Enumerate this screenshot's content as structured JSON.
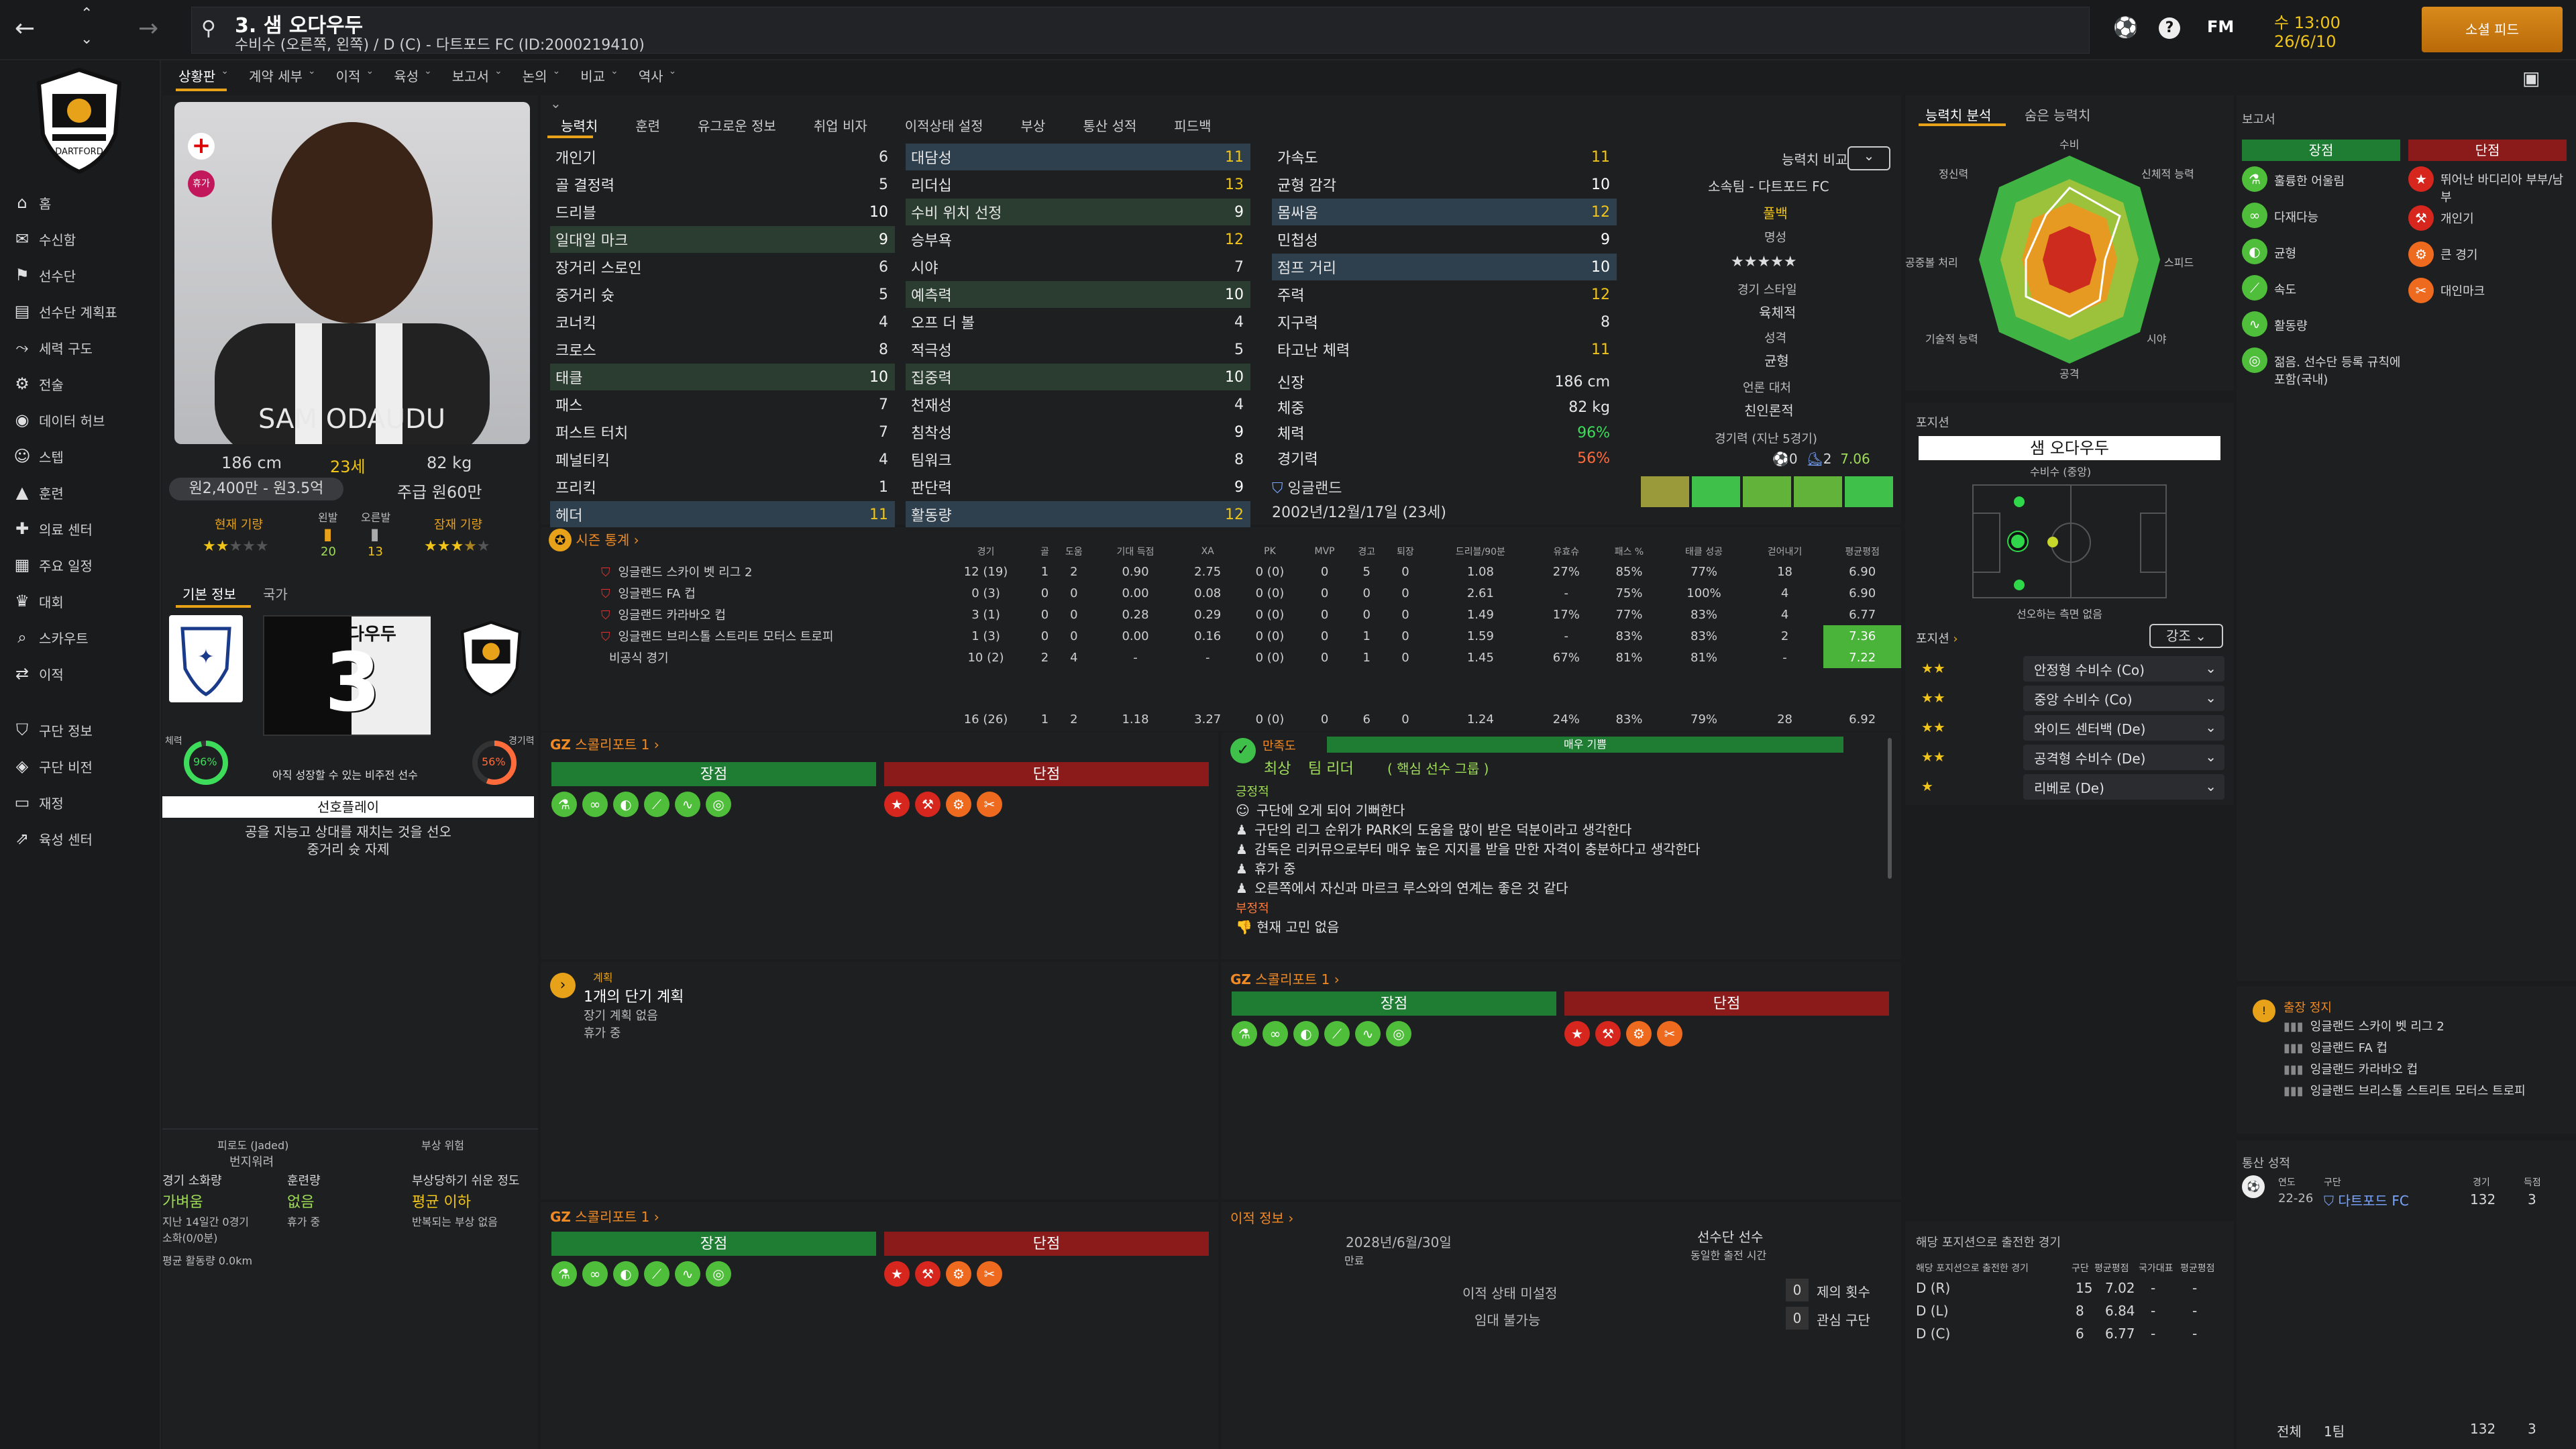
{
  "header": {
    "title": "3. 샘 오다우두",
    "subtitle": "수비수 (오른쪽, 왼쪽) / D (C) - 다트포드 FC (ID:2000219410)",
    "brand": "FM",
    "date_time": "수 13:00",
    "date": "26/6/10",
    "continue_label": "소셜 피드"
  },
  "sidebar": {
    "items": [
      {
        "label": "홈",
        "icon": "home-icon"
      },
      {
        "label": "수신함",
        "icon": "inbox-icon"
      },
      {
        "label": "선수단",
        "icon": "squad-icon"
      },
      {
        "label": "선수단 계획표",
        "icon": "plan-icon"
      },
      {
        "label": "세력 구도",
        "icon": "dynamics-icon"
      },
      {
        "label": "전술",
        "icon": "tactics-icon"
      },
      {
        "label": "데이터 허브",
        "icon": "data-icon"
      },
      {
        "label": "스텝",
        "icon": "staff-icon"
      },
      {
        "label": "훈련",
        "icon": "training-icon"
      },
      {
        "label": "의료 센터",
        "icon": "medical-icon"
      },
      {
        "label": "주요 일정",
        "icon": "schedule-icon"
      },
      {
        "label": "대회",
        "icon": "trophy-icon"
      },
      {
        "label": "스카우트",
        "icon": "scout-icon"
      },
      {
        "label": "이적",
        "icon": "transfer-icon"
      },
      {
        "label": "구단 정보",
        "icon": "club-icon"
      },
      {
        "label": "구단 비전",
        "icon": "vision-icon"
      },
      {
        "label": "재정",
        "icon": "finance-icon"
      },
      {
        "label": "육성 센터",
        "icon": "development-icon"
      }
    ]
  },
  "menu": {
    "items": [
      "상황판",
      "계약 세부",
      "이적",
      "육성",
      "보고서",
      "논의",
      "비교",
      "역사"
    ]
  },
  "profile": {
    "name_on_shirt": "SAM ODAUDU",
    "height": "186 cm",
    "age": "23세",
    "weight": "82 kg",
    "value": "원2,400만 - 원3.5억",
    "wage": "주급 원60만",
    "current_ability": "현재 기량",
    "potential_ability": "잠재 기량",
    "left_foot_label": "왼발",
    "left_foot": "20",
    "right_foot_label": "오른발",
    "right_foot": "13",
    "tabs": [
      "기본 정보",
      "국가"
    ],
    "shirt_name": "다우두",
    "shirt_number": "3",
    "fitness_label": "체력",
    "fitness": "96%",
    "sharpness_label": "경기력",
    "sharpness": "56%",
    "note": "아직 성장할 수 있는 비주전 선수",
    "role_label": "선호플레이",
    "roles": [
      "공을 지능고 상대를 재치는 것을 선오",
      "중거리 슛 자제"
    ],
    "fatigue_title": "피로도 (Jaded)",
    "fatigue": "번지워려",
    "injury_title": "부상 위험",
    "load_label": "경기 소화량",
    "load": "가벼움",
    "train_label": "훈련량",
    "train": "없음",
    "injury_label": "부상당하기 쉬운 정도",
    "injury": "평균 이하",
    "load_sub": "지난 14일간 0경기",
    "load_sub2": "소화(0/0분)",
    "train_sub": "휴가 중",
    "injury_sub": "반복되는 부상 없음",
    "distance": "평균 활동량 0.0km"
  },
  "attr_tabs": [
    "능력치",
    "훈련",
    "유그로운 정보",
    "취업 비자",
    "이적상태 설정",
    "부상",
    "통산 성적",
    "피드백"
  ],
  "attributes": {
    "technical": [
      [
        "개인기",
        "6"
      ],
      [
        "골 결정력",
        "5"
      ],
      [
        "드리블",
        "10"
      ],
      [
        "일대일 마크",
        "9"
      ],
      [
        "장거리 스로인",
        "6"
      ],
      [
        "중거리 슛",
        "5"
      ],
      [
        "코너킥",
        "4"
      ],
      [
        "크로스",
        "8"
      ],
      [
        "태클",
        "10"
      ],
      [
        "패스",
        "7"
      ],
      [
        "퍼스트 터치",
        "7"
      ],
      [
        "페널티킥",
        "4"
      ],
      [
        "프리킥",
        "1"
      ],
      [
        "헤더",
        "11"
      ]
    ],
    "mental": [
      [
        "대담성",
        "11"
      ],
      [
        "리더십",
        "13"
      ],
      [
        "수비 위치 선정",
        "9"
      ],
      [
        "승부욕",
        "12"
      ],
      [
        "시야",
        "7"
      ],
      [
        "예측력",
        "10"
      ],
      [
        "오프 더 볼",
        "4"
      ],
      [
        "적극성",
        "5"
      ],
      [
        "집중력",
        "10"
      ],
      [
        "천재성",
        "4"
      ],
      [
        "침착성",
        "9"
      ],
      [
        "팀워크",
        "8"
      ],
      [
        "판단력",
        "9"
      ],
      [
        "활동량",
        "12"
      ]
    ],
    "physical": [
      [
        "가속도",
        "11"
      ],
      [
        "균형 감각",
        "10"
      ],
      [
        "몸싸움",
        "12"
      ],
      [
        "민첩성",
        "9"
      ],
      [
        "점프 거리",
        "10"
      ],
      [
        "주력",
        "12"
      ],
      [
        "지구력",
        "8"
      ],
      [
        "타고난 체력",
        "11"
      ]
    ],
    "info": [
      [
        "신장",
        "186 cm"
      ],
      [
        "체중",
        "82 kg"
      ],
      [
        "체력",
        "96%"
      ],
      [
        "경기력",
        "56%"
      ]
    ],
    "nation": "잉글랜드",
    "dob": "2002년/12월/17일 (23세)"
  },
  "compare": {
    "label": "능력치 비교",
    "club": "소속팀 - 다트포드 FC",
    "value": "풀백",
    "rep_label": "명성",
    "stars": "★★★★★",
    "style_label": "경기 스타일",
    "style": "육체적",
    "personality_label": "성격",
    "personality": "균형",
    "media_label": "언론 대처",
    "media": "친인론적",
    "form_label": "경기력 (지난 5경기)",
    "goals": "0",
    "assists": "2",
    "avg": "7.06"
  },
  "stats": {
    "title": "시즌 통계",
    "headers": [
      "경기",
      "골",
      "도움",
      "기대 득점",
      "XA",
      "PK",
      "MVP",
      "경고",
      "퇴장",
      "드리블/90분",
      "유효슈",
      "패스 %",
      "태클 성공",
      "걷어내기",
      "평균평점"
    ],
    "rows": [
      {
        "name": "잉글랜드 스카이 벳 리그 2",
        "v": [
          "12 (19)",
          "1",
          "2",
          "0.90",
          "2.75",
          "0 (0)",
          "0",
          "5",
          "0",
          "1.08",
          "27%",
          "85%",
          "77%",
          "18",
          "6.90"
        ]
      },
      {
        "name": "잉글랜드 FA 컵",
        "v": [
          "0 (3)",
          "0",
          "0",
          "0.00",
          "0.08",
          "0 (0)",
          "0",
          "0",
          "0",
          "2.61",
          "-",
          "75%",
          "100%",
          "4",
          "6.90"
        ]
      },
      {
        "name": "잉글랜드 카라바오 컵",
        "v": [
          "3 (1)",
          "0",
          "0",
          "0.28",
          "0.29",
          "0 (0)",
          "0",
          "0",
          "0",
          "1.49",
          "17%",
          "77%",
          "83%",
          "4",
          "6.77"
        ]
      },
      {
        "name": "잉글랜드 브리스톨 스트리트 모터스 트로피",
        "v": [
          "1 (3)",
          "0",
          "0",
          "0.00",
          "0.16",
          "0 (0)",
          "0",
          "1",
          "0",
          "1.59",
          "-",
          "83%",
          "83%",
          "2",
          "7.36"
        ]
      },
      {
        "name": "비공식 경기",
        "v": [
          "10 (2)",
          "2",
          "4",
          "-",
          "-",
          "0 (0)",
          "0",
          "1",
          "0",
          "1.45",
          "67%",
          "81%",
          "81%",
          "-",
          "7.22"
        ]
      }
    ],
    "total": [
      "16 (26)",
      "1",
      "2",
      "1.18",
      "3.27",
      "0 (0)",
      "0",
      "6",
      "0",
      "1.24",
      "24%",
      "83%",
      "79%",
      "28",
      "6.92"
    ]
  },
  "report1": {
    "title": "스콜리포트 1",
    "pros": "장점",
    "cons": "단점"
  },
  "report2": {
    "title": "스콜리포트 1",
    "pros": "장점",
    "cons": "단점"
  },
  "report3": {
    "title": "스콜리포트 1",
    "pros": "장점",
    "cons": "단점"
  },
  "morale": {
    "title": "만족도",
    "bar": "매우 기쁨",
    "status": "최상",
    "group": "팀 리더",
    "group_sub": "( 핵심 선수 그룹 )",
    "pos_label": "긍정적",
    "pos": [
      "구단에 오게 되어 기뻐한다",
      "구단의 리그 순위가 PARK의 도움을 많이 받은 덕분이라고 생각한다",
      "감독은 리커뮤으로부터 매우 높은 지지를 받을 만한 자격이 충분하다고 생각한다",
      "휴가 중",
      "오른쪽에서 자신과 마르크 루스와의 연계는 좋은 것 같다"
    ],
    "neg_label": "부정적",
    "neg": [
      "현재 고민 없음"
    ]
  },
  "plan": {
    "label": "계획",
    "title": "1개의 단기 계획",
    "l1": "장기 계획 없음",
    "l2": "휴가 중"
  },
  "transfer": {
    "title": "이적 정보",
    "contract": "2028년/6월/30일",
    "contract_label": "만료",
    "squad": "선수단 선수",
    "squad_label": "동일한 출전 시간",
    "status": "이적 상태 미설정",
    "loan": "임대 불가능",
    "offers": "제의 횟수",
    "offers_n": "0",
    "interest": "관심 구단",
    "interest_n": "0"
  },
  "analysis": {
    "tabs": [
      "능력치 분석",
      "숨은 능력치"
    ],
    "labels": [
      "수비",
      "신체적 능력",
      "스피드",
      "시야",
      "공격",
      "기술적 능력",
      "공중볼 처리",
      "정신력"
    ]
  },
  "position": {
    "title": "포지션",
    "name": "샘 오다우두",
    "role": "수비수 (중앙)",
    "note": "선오하는 측면 없음",
    "pos_label": "포지션",
    "btn": "강조",
    "roles": [
      {
        "stars": "★★",
        "label": "안정형 수비수 (Co)"
      },
      {
        "stars": "★★",
        "label": "중앙 수비수 (Co)"
      },
      {
        "stars": "★★",
        "label": "와이드 센터백 (De)"
      },
      {
        "stars": "★★",
        "label": "공격형 수비수 (De)"
      },
      {
        "stars": "★",
        "label": "리베로 (De)"
      }
    ]
  },
  "posplay": {
    "title": "해당 포지션으로 출전한 경기",
    "h1": "해당 포지션으로 출전한 경기",
    "h2": "구단",
    "h3": "평균평점",
    "h4": "국가대표",
    "h5": "평균평점",
    "rows": [
      [
        "D (R)",
        "15",
        "7.02"
      ],
      [
        "D (L)",
        "8",
        "6.84"
      ],
      [
        "D (C)",
        "6",
        "6.77"
      ]
    ]
  },
  "report": {
    "title": "보고서",
    "pros": "장점",
    "cons": "단점",
    "pros_list": [
      "훌륭한 어울림",
      "다재다능",
      "균형",
      "속도",
      "활동량",
      "젊음. 선수단 등록 규칙에 포함(국내)"
    ],
    "cons_list": [
      "뛰어난 바디리아 부부/남부",
      "개인기",
      "큰 경기",
      "대인마크"
    ]
  },
  "suspension": {
    "title": "출장 정지",
    "items": [
      "잉글랜드 스카이 벳 리그 2",
      "잉글랜드 FA 컵",
      "잉글랜드 카라바오 컵",
      "잉글랜드 브리스톨 스트리트 모터스 트로피"
    ]
  },
  "career": {
    "title": "통산 성적",
    "h_year": "연도",
    "h_club": "구단",
    "h_apps": "경기",
    "h_goals": "득점",
    "year": "22-26",
    "club": "다트포드 FC",
    "apps": "132",
    "goals": "3",
    "total_label": "전체",
    "total_club": "1팀",
    "total_apps": "132",
    "total_goals": "3"
  }
}
